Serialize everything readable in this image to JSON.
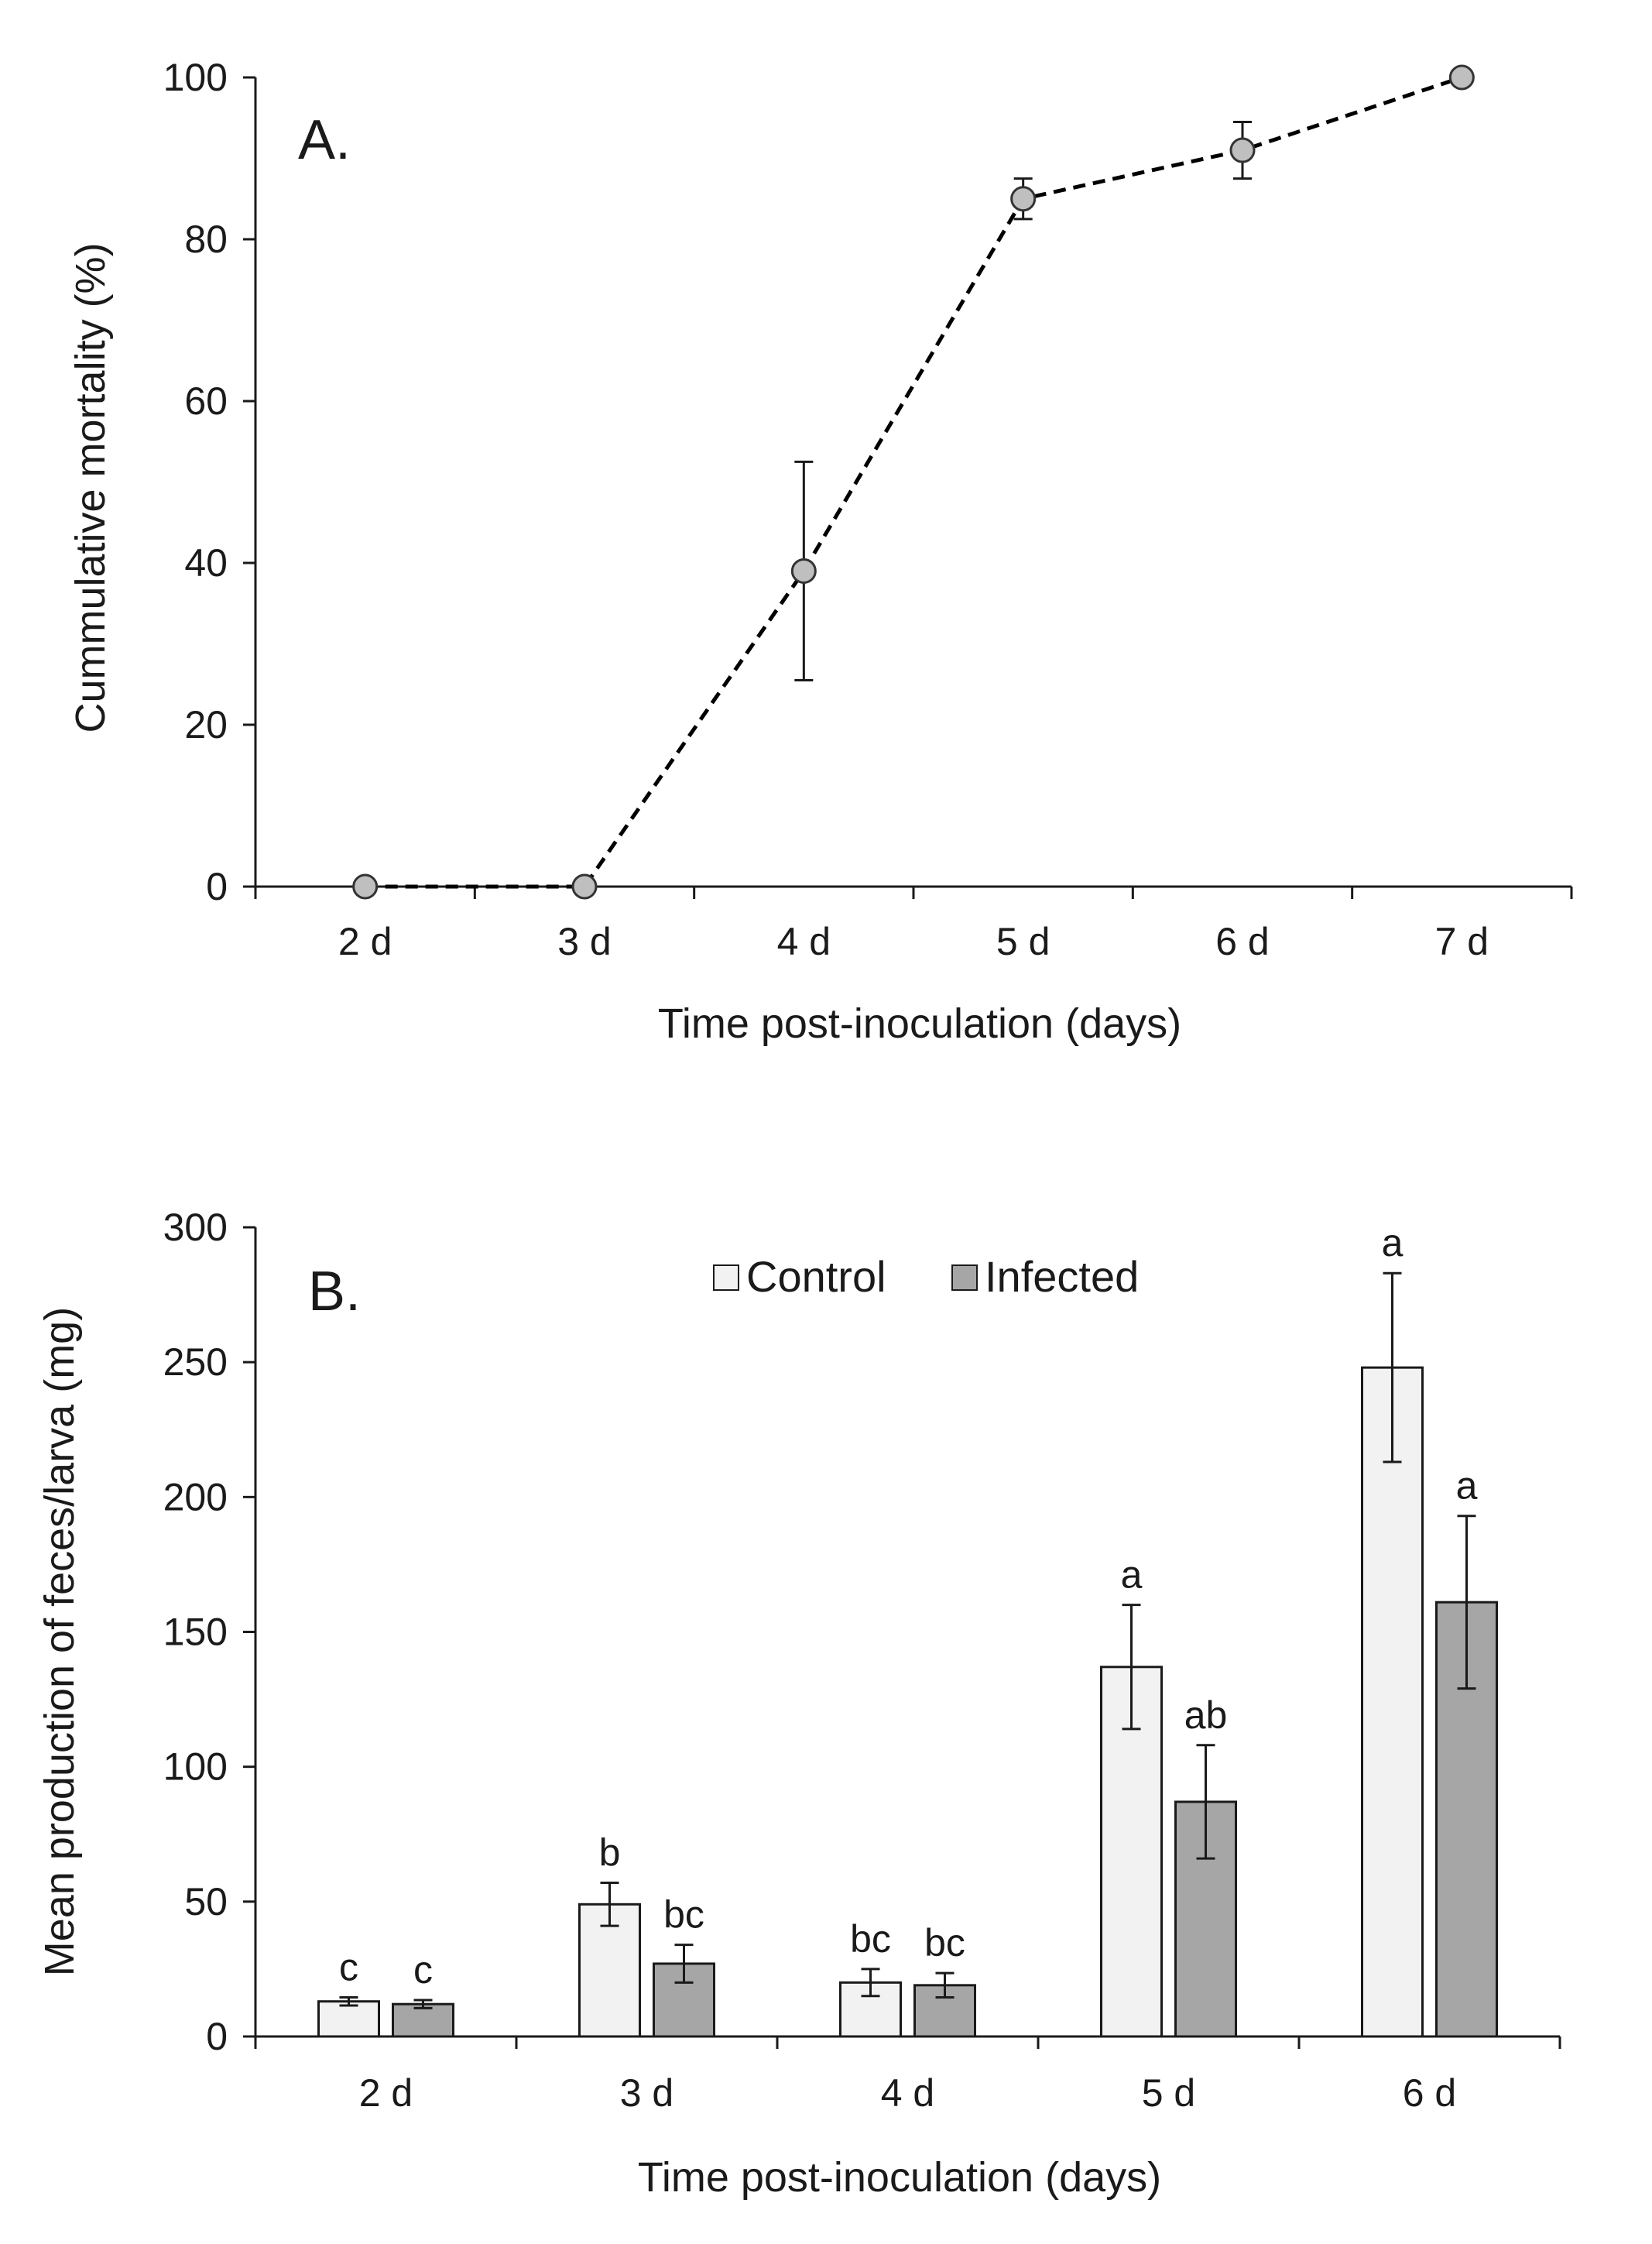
{
  "chart_data": [
    {
      "type": "line",
      "panel_label": "A.",
      "categories": [
        "2 d",
        "3 d",
        "4 d",
        "5 d",
        "6 d",
        "7 d"
      ],
      "series": [
        {
          "name": "Cumulative mortality",
          "values": [
            0,
            0,
            39,
            85,
            91,
            100
          ],
          "errors": [
            0,
            0,
            13.5,
            2.5,
            3.5,
            0
          ]
        }
      ],
      "xlabel": "Time post-inoculation (days)",
      "ylabel": "Cummulative  mortality (%)",
      "ylim": [
        0,
        100
      ],
      "yticks": [
        0,
        20,
        40,
        60,
        80,
        100
      ],
      "line_style": "dashed",
      "marker_color": "#bfbfbf",
      "line_color": "#000000"
    },
    {
      "type": "bar",
      "panel_label": "B.",
      "categories": [
        "2 d",
        "3 d",
        "4 d",
        "5 d",
        "6 d"
      ],
      "series": [
        {
          "name": "Control",
          "values": [
            13,
            49,
            20,
            137,
            248
          ],
          "errors": [
            1.5,
            8,
            5,
            23,
            35
          ],
          "labels": [
            "c",
            "b",
            "bc",
            "a",
            "a"
          ],
          "color": "#f2f2f2"
        },
        {
          "name": "Infected",
          "values": [
            12,
            27,
            19,
            87,
            161
          ],
          "errors": [
            1.5,
            7,
            4.5,
            21,
            32
          ],
          "labels": [
            "c",
            "bc",
            "bc",
            "ab",
            "a"
          ],
          "color": "#a6a6a6"
        }
      ],
      "xlabel": "Time post-inoculation (days)",
      "ylabel": "Mean production of feces/larva (mg)",
      "ylim": [
        0,
        300
      ],
      "yticks": [
        0,
        50,
        100,
        150,
        200,
        250,
        300
      ],
      "legend_position": "top-center"
    }
  ]
}
